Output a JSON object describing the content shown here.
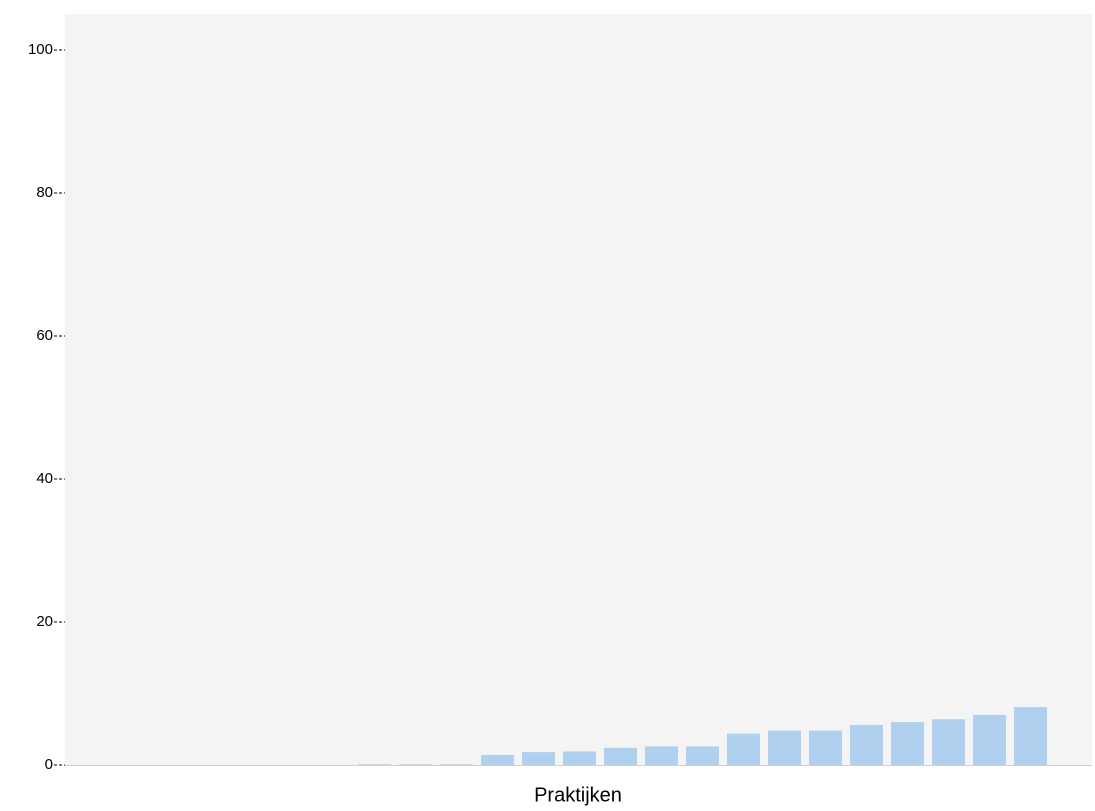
{
  "chart_data": {
    "type": "bar",
    "x_label": "Praktijken",
    "categories": [
      null,
      null,
      null,
      null,
      null,
      null,
      null,
      null,
      null,
      null,
      null,
      null,
      null,
      null,
      null,
      null,
      null,
      null,
      null,
      null,
      null,
      null,
      null,
      null
    ],
    "values": [
      0,
      0,
      0,
      0,
      0,
      0,
      0,
      0.1,
      0.1,
      0.1,
      1.4,
      1.8,
      1.9,
      2.4,
      2.6,
      2.6,
      4.4,
      4.8,
      4.8,
      5.6,
      6.0,
      6.4,
      7.0,
      8.1
    ],
    "color": "#afd0ee",
    "ylim": [
      0,
      100
    ],
    "yticks": [
      0,
      20,
      40,
      60,
      80,
      100
    ],
    "grid": false
  }
}
